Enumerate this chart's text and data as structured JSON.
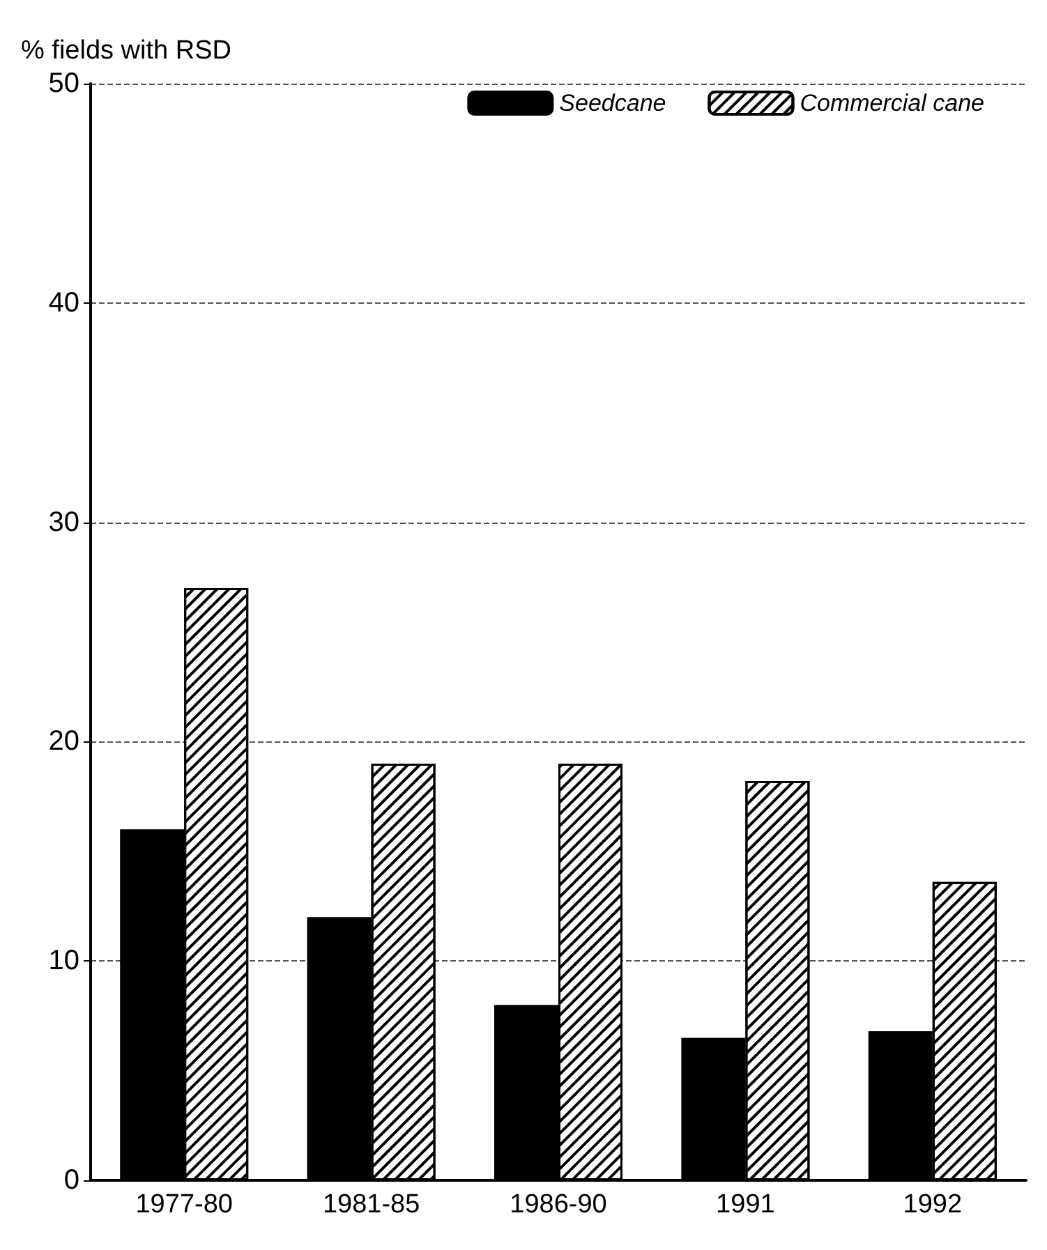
{
  "chart_data": {
    "type": "bar",
    "ylabel": "% fields with RSD",
    "categories": [
      "1977-80",
      "1981-85",
      "1986-90",
      "1991",
      "1992"
    ],
    "series": [
      {
        "name": "Seedcane",
        "color": "#000000",
        "values": [
          16,
          12,
          8,
          6.5,
          6.8
        ]
      },
      {
        "name": "Commercial cane",
        "color": "#ffffff",
        "values": [
          27,
          19,
          19,
          18.2,
          13.6
        ]
      }
    ],
    "ylim": [
      0,
      50
    ],
    "yticks": [
      0,
      10,
      20,
      30,
      40,
      50
    ],
    "grid": "y",
    "legend": "top right"
  }
}
